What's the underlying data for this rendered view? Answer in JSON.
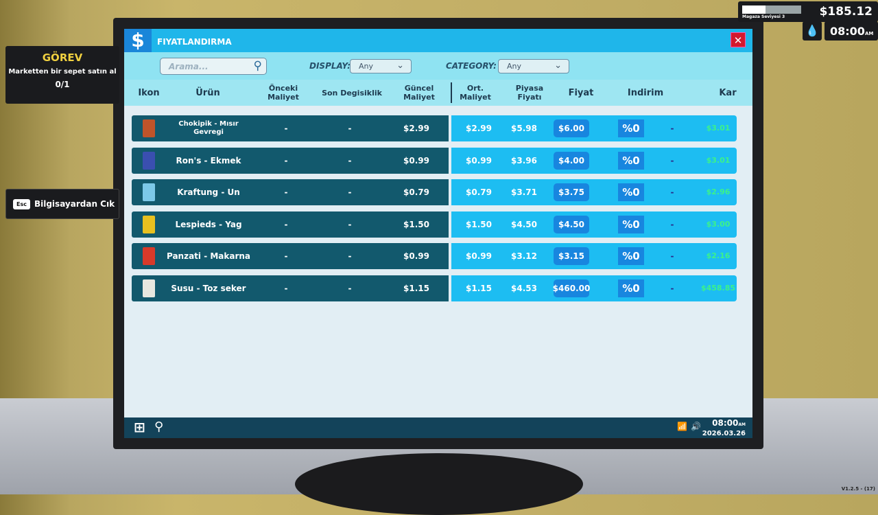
{
  "hud": {
    "money": "$185.12",
    "level_label": "Magaza Seviyesi 3",
    "level_progress": 0.4,
    "time": "08:00",
    "ampm": "AM",
    "water_icon": "drop-icon"
  },
  "task": {
    "title": "GÖREV",
    "text": "Marketten bir sepet satın al",
    "progress": "0/1"
  },
  "exit": {
    "key": "Esc",
    "label": "Bilgisayardan Cık"
  },
  "window": {
    "title": "FIYATLANDIRMA",
    "logo": "$",
    "close": "✕"
  },
  "filters": {
    "search_placeholder": "Arama...",
    "display_label": "DISPLAY:",
    "display_value": "Any",
    "category_label": "CATEGORY:",
    "category_value": "Any"
  },
  "columns": [
    "Ikon",
    "Ürün",
    "Önceki Maliyet",
    "Son Degisiklik",
    "Güncel Maliyet",
    "Ort. Maliyet",
    "Piyasa Fiyatı",
    "Fiyat",
    "Indirim",
    "Kar"
  ],
  "products": [
    {
      "name": "Chokipik - Mısır Gevregi",
      "prev": "-",
      "change": "-",
      "current": "$2.99",
      "avg": "$2.99",
      "market": "$5.98",
      "price": "$6.00",
      "discount": "%0",
      "dash": "-",
      "profit": "$3.01",
      "color": "#c0542a"
    },
    {
      "name": "Ron's - Ekmek",
      "prev": "-",
      "change": "-",
      "current": "$0.99",
      "avg": "$0.99",
      "market": "$3.96",
      "price": "$4.00",
      "discount": "%0",
      "dash": "-",
      "profit": "$3.01",
      "color": "#3a4fb0"
    },
    {
      "name": "Kraftung - Un",
      "prev": "-",
      "change": "-",
      "current": "$0.79",
      "avg": "$0.79",
      "market": "$3.71",
      "price": "$3.75",
      "discount": "%0",
      "dash": "-",
      "profit": "$2.96",
      "color": "#7cc8e8"
    },
    {
      "name": "Lespieds - Yag",
      "prev": "-",
      "change": "-",
      "current": "$1.50",
      "avg": "$1.50",
      "market": "$4.50",
      "price": "$4.50",
      "discount": "%0",
      "dash": "-",
      "profit": "$3.00",
      "color": "#e8c020"
    },
    {
      "name": "Panzati - Makarna",
      "prev": "-",
      "change": "-",
      "current": "$0.99",
      "avg": "$0.99",
      "market": "$3.12",
      "price": "$3.15",
      "discount": "%0",
      "dash": "-",
      "profit": "$2.16",
      "color": "#d83a2a"
    },
    {
      "name": "Susu - Toz seker",
      "prev": "-",
      "change": "-",
      "current": "$1.15",
      "avg": "$1.15",
      "market": "$4.53",
      "price": "$460.00",
      "discount": "%0",
      "dash": "-",
      "profit": "$458.85",
      "color": "#e8e8e0"
    }
  ],
  "taskbar": {
    "time": "08:00",
    "ampm": "AM",
    "date": "2026.03.26"
  },
  "version": "V1.2.5 - (17)"
}
